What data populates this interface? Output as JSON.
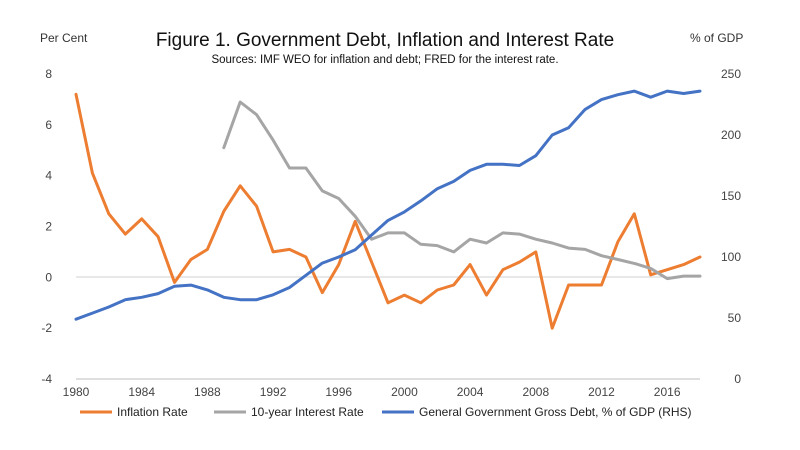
{
  "chart_data": {
    "type": "line",
    "title": "Figure 1. Government Debt, Inflation and Interest Rate",
    "subtitle": "Sources: IMF WEO for inflation and debt; FRED for the interest rate.",
    "left_axis_label": "Per Cent",
    "right_axis_label": "% of GDP",
    "x_ticks": [
      "1980",
      "1984",
      "1988",
      "1992",
      "1996",
      "2000",
      "2004",
      "2008",
      "2012",
      "2016"
    ],
    "xlim": [
      1980,
      2018
    ],
    "ylim_left": [
      -4,
      8
    ],
    "y_ticks_left": [
      "-4",
      "-2",
      "0",
      "2",
      "4",
      "6",
      "8"
    ],
    "ylim_right": [
      0,
      250
    ],
    "y_ticks_right": [
      "0",
      "50",
      "100",
      "150",
      "200",
      "250"
    ],
    "legend_position": "bottom",
    "series": [
      {
        "name": "Inflation Rate",
        "axis": "left",
        "color": "#ED7D31",
        "x": [
          1980,
          1981,
          1982,
          1983,
          1984,
          1985,
          1986,
          1987,
          1988,
          1989,
          1990,
          1991,
          1992,
          1993,
          1994,
          1995,
          1996,
          1997,
          1998,
          1999,
          2000,
          2001,
          2002,
          2003,
          2004,
          2005,
          2006,
          2007,
          2008,
          2009,
          2010,
          2011,
          2012,
          2013,
          2014,
          2015,
          2016,
          2017,
          2018
        ],
        "values": [
          7.2,
          4.1,
          2.5,
          1.7,
          2.3,
          1.6,
          -0.2,
          0.7,
          1.1,
          2.6,
          3.6,
          2.8,
          1.0,
          1.1,
          0.8,
          -0.6,
          0.5,
          2.2,
          0.6,
          -1.0,
          -0.7,
          -1.0,
          -0.5,
          -0.3,
          0.5,
          -0.7,
          0.3,
          0.6,
          1.0,
          -2.0,
          -0.3,
          -0.3,
          -0.3,
          1.4,
          2.5,
          0.1,
          0.3,
          0.5,
          0.8
        ]
      },
      {
        "name": "10-year Interest Rate",
        "axis": "left",
        "color": "#A5A5A5",
        "x": [
          1989,
          1990,
          1991,
          1992,
          1993,
          1994,
          1995,
          1996,
          1997,
          1998,
          1999,
          2000,
          2001,
          2002,
          2003,
          2004,
          2005,
          2006,
          2007,
          2008,
          2009,
          2010,
          2011,
          2012,
          2013,
          2014,
          2015,
          2016,
          2017,
          2018
        ],
        "values": [
          5.1,
          6.9,
          6.4,
          5.4,
          4.3,
          4.3,
          3.4,
          3.1,
          2.4,
          1.5,
          1.75,
          1.75,
          1.3,
          1.25,
          1.0,
          1.5,
          1.35,
          1.75,
          1.7,
          1.5,
          1.35,
          1.15,
          1.1,
          0.85,
          0.7,
          0.55,
          0.35,
          -0.05,
          0.05,
          0.05
        ]
      },
      {
        "name": "General Government Gross Debt, % of GDP (RHS)",
        "axis": "right",
        "color": "#4472C4",
        "x": [
          1980,
          1981,
          1982,
          1983,
          1984,
          1985,
          1986,
          1987,
          1988,
          1989,
          1990,
          1991,
          1992,
          1993,
          1994,
          1995,
          1996,
          1997,
          1998,
          1999,
          2000,
          2001,
          2002,
          2003,
          2004,
          2005,
          2006,
          2007,
          2008,
          2009,
          2010,
          2011,
          2012,
          2013,
          2014,
          2015,
          2016,
          2017,
          2018
        ],
        "values": [
          49,
          54,
          59,
          65,
          67,
          70,
          76,
          77,
          73,
          67,
          65,
          65,
          69,
          75,
          85,
          95,
          100,
          106,
          118,
          130,
          137,
          146,
          156,
          162,
          171,
          176,
          176,
          175,
          183,
          200,
          206,
          221,
          229,
          233,
          236,
          231,
          236,
          234,
          236
        ]
      }
    ]
  }
}
